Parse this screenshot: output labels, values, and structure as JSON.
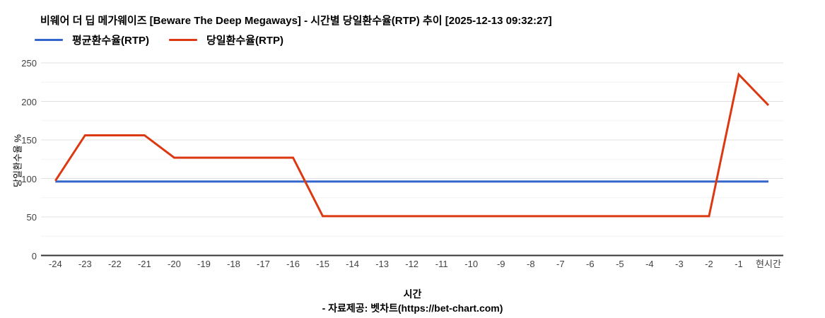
{
  "header": {
    "title": "비웨어 더 딥 메가웨이즈 [Beware The Deep Megaways] - 시간별 당일환수율(RTP) 추이 [2025-12-13 09:32:27]"
  },
  "legend": {
    "items": [
      {
        "name": "average-rtp",
        "label": "평균환수율(RTP)",
        "color": "#3366CC"
      },
      {
        "name": "daily-rtp",
        "label": "당일환수율(RTP)",
        "color": "#DC3912"
      }
    ]
  },
  "footer": {
    "credit": "- 자료제공: 벳차트(https://bet-chart.com)"
  },
  "chart_data": {
    "type": "line",
    "title": "비웨어 더 딥 메가웨이즈 [Beware The Deep Megaways] - 시간별 당일환수율(RTP) 추이 [2025-12-13 09:32:27]",
    "xlabel": "시간",
    "ylabel": "당일환수율 %",
    "ylim": [
      0,
      250
    ],
    "yticks": [
      0,
      50,
      100,
      150,
      200,
      250
    ],
    "minor_gridlines": [
      25,
      75,
      125,
      175,
      225
    ],
    "grid": "horizontal major+minor",
    "legend_position": "top-left",
    "categories": [
      "-24",
      "-23",
      "-22",
      "-21",
      "-20",
      "-19",
      "-18",
      "-17",
      "-16",
      "-15",
      "-14",
      "-13",
      "-12",
      "-11",
      "-10",
      "-9",
      "-8",
      "-7",
      "-6",
      "-5",
      "-4",
      "-3",
      "-2",
      "-1",
      "현시간"
    ],
    "series": [
      {
        "name": "평균환수율(RTP)",
        "color": "#3366CC",
        "values": [
          96,
          96,
          96,
          96,
          96,
          96,
          96,
          96,
          96,
          96,
          96,
          96,
          96,
          96,
          96,
          96,
          96,
          96,
          96,
          96,
          96,
          96,
          96,
          96,
          96
        ]
      },
      {
        "name": "당일환수율(RTP)",
        "color": "#DC3912",
        "values": [
          97,
          156,
          156,
          156,
          127,
          127,
          127,
          127,
          127,
          51,
          51,
          51,
          51,
          51,
          51,
          51,
          51,
          51,
          51,
          51,
          51,
          51,
          51,
          235,
          195
        ]
      }
    ]
  }
}
